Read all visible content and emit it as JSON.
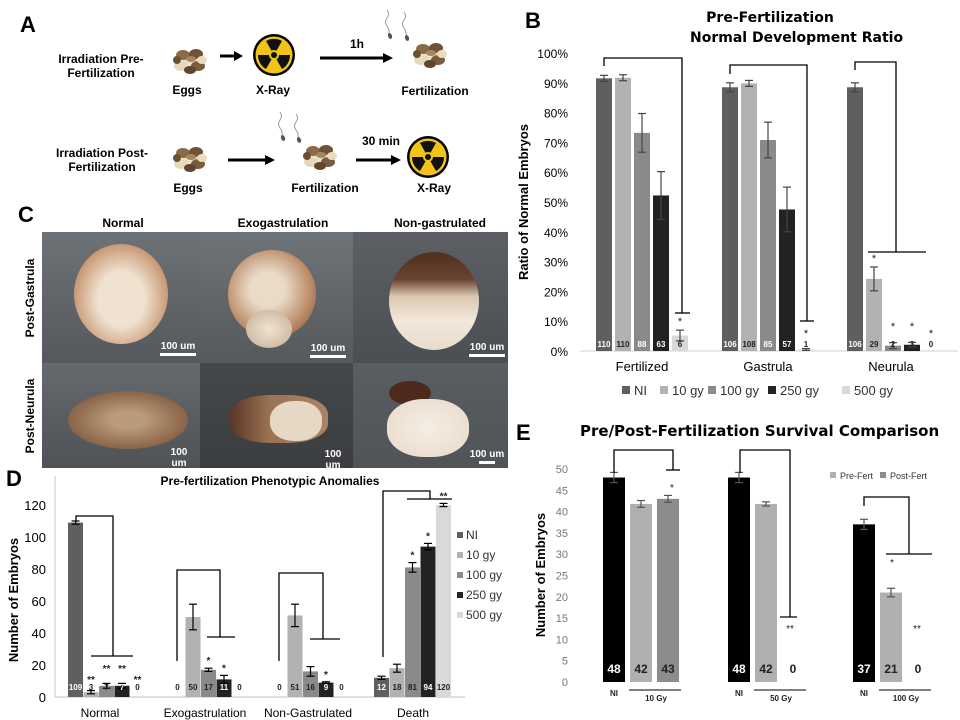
{
  "panels": {
    "A": {
      "letter": "A",
      "row1": {
        "label_line1": "Irradiation Pre-",
        "label_line2": "Fertilization",
        "step1": "Eggs",
        "step2": "X-Ray",
        "arrow2_label": "1h",
        "step3": "Fertilization"
      },
      "row2": {
        "label_line1": "Irradiation Post-",
        "label_line2": "Fertilization",
        "step1": "Eggs",
        "step2": "Fertilization",
        "arrow2_label": "30 min",
        "step3": "X-Ray"
      },
      "icons": [
        "eggs-cluster-icon",
        "radiation-icon",
        "sperm-icon",
        "arrow-right-icon"
      ]
    },
    "C": {
      "letter": "C",
      "columns": [
        "Normal",
        "Exogastrulation",
        "Non-gastrulated"
      ],
      "rows": [
        "Post-Gastrula",
        "Post-Neurula"
      ],
      "scale_label": "100 um"
    },
    "B": {
      "letter": "B"
    },
    "D": {
      "letter": "D"
    },
    "E": {
      "letter": "E"
    }
  },
  "colors": {
    "NI": "#5f5f5f",
    "10gy": "#b2b2b2",
    "100gy": "#8a8a8a",
    "250gy": "#222222",
    "500gy": "#d9d9d9",
    "E_NI": "#000000",
    "E_pre": "#b0b0b0",
    "E_post": "#8c8c8c",
    "radiation_yellow": "#f2c418"
  },
  "chart_data": [
    {
      "id": "B",
      "type": "bar",
      "title": "Pre-Fertilization Normal Development Ratio",
      "title_line1": "Pre-Fertilization",
      "title_line2": "Normal Development Ratio",
      "xlabel": "",
      "ylabel": "Ratio of Normal Embryos",
      "ylim": [
        0,
        100
      ],
      "yticks": [
        "0%",
        "10%",
        "20%",
        "30%",
        "40%",
        "50%",
        "60%",
        "70%",
        "80%",
        "90%",
        "100%"
      ],
      "categories": [
        "Fertilized",
        "Gastrula",
        "Neurula"
      ],
      "legend": [
        "NI",
        "10 gy",
        "100 gy",
        "250 gy",
        "500 gy"
      ],
      "legend_position": "bottom",
      "series": [
        {
          "name": "NI",
          "values": [
            91.5,
            88.5,
            88.5
          ],
          "errors": [
            1,
            1.5,
            1.5
          ],
          "counts": [
            "110",
            "106",
            "106"
          ],
          "stars": [
            "",
            "",
            ""
          ]
        },
        {
          "name": "10 gy",
          "values": [
            91.7,
            89.8,
            24.2
          ],
          "errors": [
            1,
            1,
            4
          ],
          "counts": [
            "110",
            "108",
            "29"
          ],
          "stars": [
            "",
            "",
            "*"
          ]
        },
        {
          "name": "100 gy",
          "values": [
            73.2,
            70.8,
            1.8
          ],
          "errors": [
            6.5,
            6,
            1
          ],
          "counts": [
            "88",
            "85",
            "2"
          ],
          "stars": [
            "",
            "",
            "*"
          ]
        },
        {
          "name": "250 gy",
          "values": [
            52.2,
            47.5,
            2.1
          ],
          "errors": [
            8,
            7.5,
            0.8
          ],
          "counts": [
            "63",
            "57",
            "3"
          ],
          "stars": [
            "",
            "",
            "*"
          ]
        },
        {
          "name": "500 gy",
          "values": [
            5.2,
            0.5,
            0
          ],
          "errors": [
            1.8,
            0.3,
            0
          ],
          "counts": [
            "6",
            "1",
            "0"
          ],
          "stars": [
            "*",
            "*",
            "*"
          ]
        }
      ]
    },
    {
      "id": "D",
      "type": "bar",
      "title": "Pre-fertilization Phenotypic Anomalies",
      "xlabel": "",
      "ylabel": "Number of Embryos",
      "ylim": [
        0,
        120
      ],
      "yticks": [
        "0",
        "20",
        "40",
        "60",
        "80",
        "100",
        "120"
      ],
      "categories": [
        "Normal",
        "Exogastrulation",
        "Non-Gastrulated",
        "Death"
      ],
      "legend": [
        "NI",
        "10 gy",
        "100 gy",
        "250 gy",
        "500 gy"
      ],
      "legend_position": "right",
      "series": [
        {
          "name": "NI",
          "values": [
            109,
            0,
            0,
            12
          ],
          "errors": [
            1,
            0,
            0,
            1
          ],
          "counts": [
            "109",
            "0",
            "0",
            "12"
          ],
          "stars": [
            "",
            "",
            "",
            ""
          ]
        },
        {
          "name": "10 gy",
          "values": [
            3,
            50,
            51,
            18
          ],
          "errors": [
            1,
            8,
            7,
            2.5
          ],
          "counts": [
            "3",
            "50",
            "51",
            "18"
          ],
          "stars": [
            "**",
            "",
            "",
            ""
          ]
        },
        {
          "name": "100 gy",
          "values": [
            7,
            17,
            16,
            81
          ],
          "errors": [
            1.5,
            1,
            3,
            3
          ],
          "counts": [
            "7",
            "17",
            "16",
            "81"
          ],
          "stars": [
            "**",
            "*",
            "",
            "*"
          ]
        },
        {
          "name": "250 gy",
          "values": [
            7,
            11,
            9,
            94
          ],
          "errors": [
            1.5,
            2.5,
            0.5,
            2
          ],
          "counts": [
            "7",
            "11",
            "9",
            "94"
          ],
          "stars": [
            "**",
            "*",
            "*",
            "*"
          ]
        },
        {
          "name": "500 gy",
          "values": [
            0,
            0,
            0,
            120
          ],
          "errors": [
            0,
            0,
            0,
            1
          ],
          "counts": [
            "0",
            "0",
            "0",
            "120"
          ],
          "stars": [
            "**",
            "",
            "",
            "**"
          ]
        }
      ]
    },
    {
      "id": "E",
      "type": "bar",
      "title": "Pre/Post-Fertilization Survival Comparison",
      "xlabel": "",
      "ylabel": "Number of Embryos",
      "ylim": [
        0,
        50
      ],
      "yticks": [
        "0",
        "5",
        "10",
        "15",
        "20",
        "25",
        "30",
        "35",
        "40",
        "45",
        "50"
      ],
      "legend": [
        "Pre-Fert",
        "Post-Fert"
      ],
      "legend_position": "top-right",
      "groups": [
        {
          "dose": "10 Gy",
          "ni_label": "NI",
          "bars": [
            {
              "kind": "NI",
              "value": 48,
              "error": 1.2,
              "count": "48",
              "star": ""
            },
            {
              "kind": "Pre-Fert",
              "value": 41.8,
              "error": 0.8,
              "count": "42",
              "star": ""
            },
            {
              "kind": "Post-Fert",
              "value": 43,
              "error": 0.8,
              "count": "43",
              "star": "*"
            }
          ]
        },
        {
          "dose": "50 Gy",
          "ni_label": "NI",
          "bars": [
            {
              "kind": "NI",
              "value": 48,
              "error": 1.2,
              "count": "48",
              "star": ""
            },
            {
              "kind": "Pre-Fert",
              "value": 41.8,
              "error": 0.5,
              "count": "42",
              "star": ""
            },
            {
              "kind": "Post-Fert",
              "value": 0,
              "error": 0,
              "count": "0",
              "star": "**"
            }
          ]
        },
        {
          "dose": "100 Gy",
          "ni_label": "NI",
          "bars": [
            {
              "kind": "NI",
              "value": 37,
              "error": 1.2,
              "count": "37",
              "star": ""
            },
            {
              "kind": "Pre-Fert",
              "value": 21,
              "error": 1,
              "count": "21",
              "star": "*"
            },
            {
              "kind": "Post-Fert",
              "value": 0,
              "error": 0,
              "count": "0",
              "star": "**"
            }
          ]
        }
      ]
    }
  ]
}
